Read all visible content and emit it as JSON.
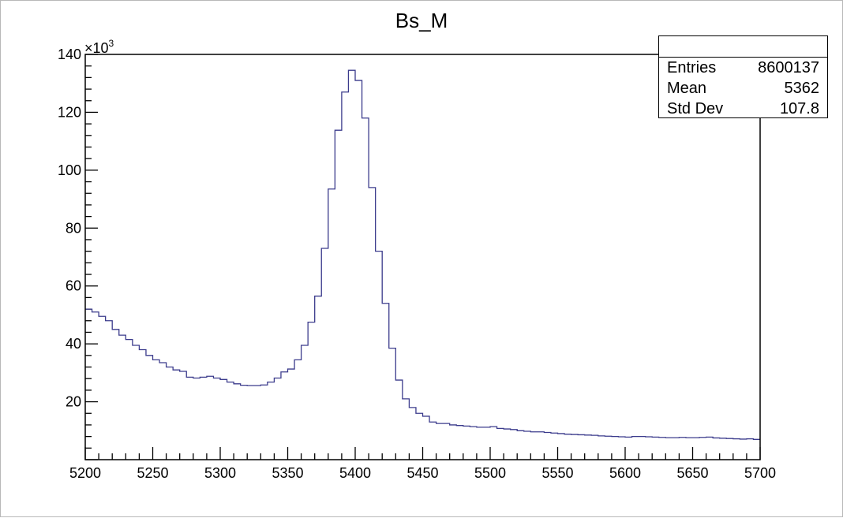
{
  "chart_data": {
    "type": "histogram",
    "title": "Bs_M",
    "xlabel": "",
    "ylabel": "",
    "xlim": [
      5200,
      5700
    ],
    "ylim": [
      0,
      140000
    ],
    "y_exponent_label": "×10",
    "y_exponent_power": "3",
    "x_ticks": [
      "5200",
      "5250",
      "5300",
      "5350",
      "5400",
      "5450",
      "5500",
      "5550",
      "5600",
      "5650",
      "5700"
    ],
    "y_ticks": [
      "20",
      "40",
      "60",
      "80",
      "100",
      "120",
      "140"
    ],
    "bin_width": 5,
    "bin_edges_start": 5200,
    "values": [
      52000,
      51000,
      49500,
      48000,
      45000,
      43000,
      41500,
      39500,
      38000,
      36000,
      34500,
      33500,
      32000,
      31000,
      30500,
      28500,
      28200,
      28500,
      28800,
      28200,
      27700,
      26800,
      26200,
      25700,
      25600,
      25600,
      25800,
      26800,
      28200,
      30300,
      31300,
      34500,
      39500,
      47500,
      56500,
      73000,
      93500,
      113800,
      127000,
      134500,
      131000,
      118000,
      94000,
      72000,
      54000,
      38500,
      27500,
      21000,
      18000,
      16000,
      15000,
      13000,
      12500,
      12500,
      12000,
      11800,
      11600,
      11400,
      11200,
      11200,
      11400,
      10800,
      10600,
      10400,
      10000,
      9800,
      9600,
      9600,
      9400,
      9200,
      9000,
      8800,
      8700,
      8600,
      8500,
      8400,
      8200,
      8100,
      8000,
      7900,
      7800,
      8000,
      8000,
      7900,
      7800,
      7700,
      7600,
      7600,
      7700,
      7600,
      7600,
      7700,
      7800,
      7500,
      7400,
      7300,
      7200,
      7100,
      7200,
      7000
    ],
    "line_color": "#3b3b8c",
    "grid": false,
    "legend": "none"
  },
  "stats": {
    "rows": [
      {
        "label": "Entries",
        "value": "8600137"
      },
      {
        "label": "Mean",
        "value": "5362"
      },
      {
        "label": "Std Dev",
        "value": "107.8"
      }
    ]
  }
}
